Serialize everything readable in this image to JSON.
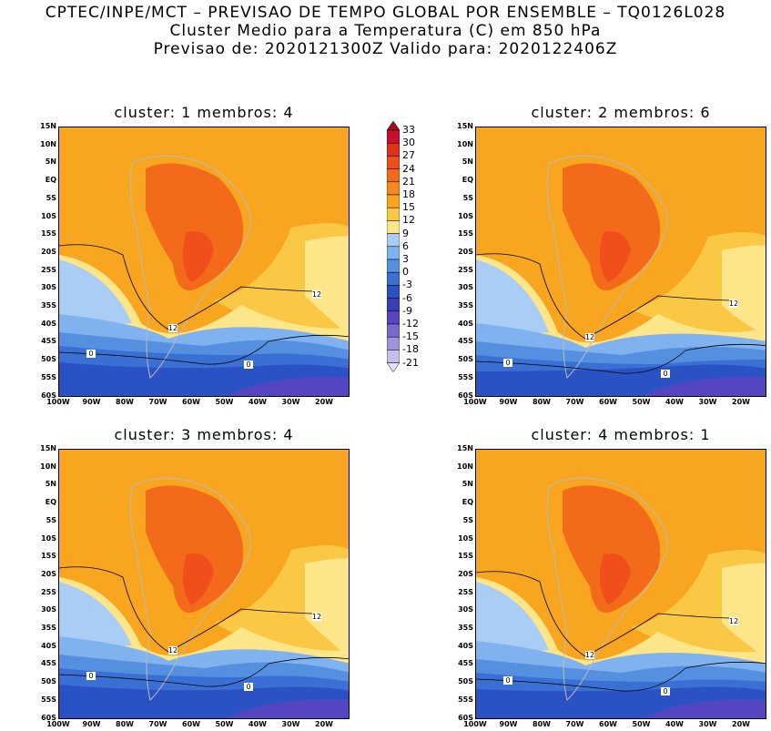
{
  "header": {
    "line1": "CPTEC/INPE/MCT – PREVISAO DE TEMPO GLOBAL POR ENSEMBLE – TQ0126L028",
    "line2": "Cluster Medio para a Temperatura (C) em 850 hPa",
    "line3": "Previsao de: 2020121300Z   Valido para: 2020122406Z"
  },
  "panels": [
    {
      "title": "cluster: 1   membros: 4"
    },
    {
      "title": "cluster: 2   membros: 6"
    },
    {
      "title": "cluster: 3   membros: 4"
    },
    {
      "title": "cluster: 4   membros: 1"
    }
  ],
  "lat_labels": [
    "15N",
    "10N",
    "5N",
    "EQ",
    "5S",
    "10S",
    "15S",
    "20S",
    "25S",
    "30S",
    "35S",
    "40S",
    "45S",
    "50S",
    "55S",
    "60S"
  ],
  "lon_labels": [
    "100W",
    "90W",
    "80W",
    "70W",
    "60W",
    "50W",
    "40W",
    "30W",
    "20W"
  ],
  "contour_labels": [
    "12",
    "0"
  ],
  "colorbar": {
    "levels": [
      "33",
      "30",
      "27",
      "24",
      "21",
      "18",
      "15",
      "12",
      "9",
      "6",
      "3",
      "0",
      "-3",
      "-6",
      "-9",
      "-12",
      "-15",
      "-18",
      "-21"
    ],
    "colors": [
      "#a50f15",
      "#c8102e",
      "#e0301e",
      "#f04e1b",
      "#f26a1a",
      "#f5891f",
      "#f8a51f",
      "#fbc846",
      "#fde68a",
      "#a9cdf5",
      "#7fb2ee",
      "#5590e0",
      "#3a6fd4",
      "#2a52c4",
      "#3a3fb8",
      "#5545c0",
      "#7a68d0",
      "#a393de",
      "#c8bdec",
      "#e6def7"
    ]
  }
}
